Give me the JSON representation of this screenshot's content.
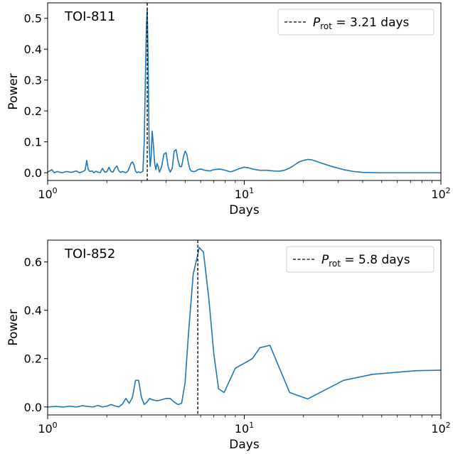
{
  "chart_data": [
    {
      "type": "line",
      "panel_label": "TOI-811",
      "xlabel": "Days",
      "ylabel": "Power",
      "xscale": "log",
      "xlim": [
        1,
        100
      ],
      "ylim": [
        -0.025,
        0.55
      ],
      "xticks": [
        {
          "value": 1,
          "base": "10",
          "exp": "0"
        },
        {
          "value": 10,
          "base": "10",
          "exp": "1"
        },
        {
          "value": 100,
          "base": "10",
          "exp": "2"
        }
      ],
      "yticks": [
        {
          "value": 0.0,
          "label": "0.0"
        },
        {
          "value": 0.1,
          "label": "0.1"
        },
        {
          "value": 0.2,
          "label": "0.2"
        },
        {
          "value": 0.3,
          "label": "0.3"
        },
        {
          "value": 0.4,
          "label": "0.4"
        },
        {
          "value": 0.5,
          "label": "0.5"
        }
      ],
      "legend": {
        "position": "top-right",
        "symbol": "P",
        "subscript": "rot",
        "text": " = 3.21 days"
      },
      "vline": {
        "x": 3.21,
        "style": "dashed",
        "color": "#000000"
      },
      "series": [
        {
          "color": "#1f77b4",
          "x": [
            1.0,
            1.05,
            1.08,
            1.12,
            1.18,
            1.25,
            1.32,
            1.4,
            1.45,
            1.5,
            1.55,
            1.58,
            1.61,
            1.64,
            1.68,
            1.72,
            1.76,
            1.8,
            1.85,
            1.9,
            1.95,
            2.0,
            2.05,
            2.1,
            2.15,
            2.2,
            2.25,
            2.3,
            2.35,
            2.4,
            2.45,
            2.5,
            2.55,
            2.6,
            2.65,
            2.7,
            2.75,
            2.8,
            2.85,
            2.9,
            2.95,
            3.0,
            3.05,
            3.1,
            3.15,
            3.18,
            3.21,
            3.24,
            3.28,
            3.32,
            3.36,
            3.4,
            3.45,
            3.5,
            3.55,
            3.6,
            3.65,
            3.7,
            3.8,
            3.9,
            4.0,
            4.1,
            4.2,
            4.3,
            4.4,
            4.5,
            4.6,
            4.7,
            4.8,
            4.9,
            5.0,
            5.1,
            5.2,
            5.3,
            5.4,
            5.5,
            5.6,
            5.7,
            5.8,
            6.0,
            6.3,
            6.7,
            7.0,
            7.5,
            8.0,
            8.5,
            9.0,
            9.5,
            10.0,
            10.5,
            11.0,
            12.0,
            13.0,
            14.0,
            15.0,
            16.0,
            17.0,
            18.0,
            19.0,
            20.0,
            21.0,
            22.0,
            23.0,
            25.0,
            28.0,
            32.0,
            36.0,
            40.0,
            50.0,
            60.0,
            80.0,
            100.0
          ],
          "y": [
            0.002,
            0.01,
            0.0,
            0.004,
            0.0,
            0.004,
            0.001,
            0.006,
            0.0,
            0.003,
            0.008,
            0.04,
            0.01,
            0.004,
            0.006,
            0.0,
            0.005,
            0.002,
            0.0,
            0.014,
            0.002,
            0.003,
            0.018,
            0.004,
            0.002,
            0.015,
            0.022,
            0.006,
            0.001,
            0.004,
            0.002,
            0.0,
            0.004,
            0.015,
            0.03,
            0.035,
            0.025,
            0.005,
            0.0,
            0.003,
            0.0,
            0.002,
            0.005,
            0.1,
            0.35,
            0.48,
            0.53,
            0.38,
            0.1,
            0.02,
            0.05,
            0.135,
            0.09,
            0.03,
            0.01,
            0.03,
            0.02,
            0.002,
            0.02,
            0.06,
            0.065,
            0.02,
            0.002,
            0.015,
            0.07,
            0.075,
            0.04,
            0.02,
            0.02,
            0.05,
            0.07,
            0.06,
            0.03,
            0.01,
            0.005,
            0.004,
            0.004,
            0.006,
            0.01,
            0.012,
            0.008,
            0.006,
            0.01,
            0.012,
            0.008,
            0.003,
            0.008,
            0.014,
            0.018,
            0.016,
            0.012,
            0.008,
            0.008,
            0.006,
            0.005,
            0.008,
            0.015,
            0.025,
            0.035,
            0.04,
            0.043,
            0.042,
            0.038,
            0.03,
            0.02,
            0.01,
            0.004,
            0.001,
            0.0,
            0.0,
            0.0,
            0.0
          ]
        }
      ]
    },
    {
      "type": "line",
      "panel_label": "TOI-852",
      "xlabel": "Days",
      "ylabel": "Power",
      "xscale": "log",
      "xlim": [
        1,
        100
      ],
      "ylim": [
        -0.033,
        0.69
      ],
      "xticks": [
        {
          "value": 1,
          "base": "10",
          "exp": "0"
        },
        {
          "value": 10,
          "base": "10",
          "exp": "1"
        },
        {
          "value": 100,
          "base": "10",
          "exp": "2"
        }
      ],
      "yticks": [
        {
          "value": 0.0,
          "label": "0.0"
        },
        {
          "value": 0.2,
          "label": "0.2"
        },
        {
          "value": 0.4,
          "label": "0.4"
        },
        {
          "value": 0.6,
          "label": "0.6"
        }
      ],
      "legend": {
        "position": "top-right",
        "symbol": "P",
        "subscript": "rot",
        "text": " = 5.8 days"
      },
      "vline": {
        "x": 5.8,
        "style": "dashed",
        "color": "#000000"
      },
      "series": [
        {
          "color": "#1f77b4",
          "x": [
            1.0,
            1.1,
            1.2,
            1.3,
            1.4,
            1.5,
            1.6,
            1.7,
            1.8,
            1.9,
            2.0,
            2.1,
            2.2,
            2.3,
            2.4,
            2.5,
            2.6,
            2.7,
            2.8,
            2.9,
            3.0,
            3.1,
            3.2,
            3.3,
            3.4,
            3.6,
            3.8,
            4.0,
            4.2,
            4.4,
            4.6,
            4.8,
            5.0,
            5.2,
            5.5,
            5.8,
            5.9,
            6.2,
            6.6,
            7.0,
            7.4,
            7.9,
            9.0,
            11.0,
            12.0,
            13.5,
            17.0,
            21.0,
            25.0,
            32.0,
            45.0,
            75.0,
            100.0
          ],
          "y": [
            0.0,
            0.002,
            0.0,
            0.003,
            0.0,
            0.005,
            0.002,
            0.0,
            0.006,
            0.0,
            0.003,
            0.01,
            0.004,
            0.0,
            0.012,
            0.035,
            0.015,
            0.04,
            0.11,
            0.11,
            0.04,
            0.01,
            0.02,
            0.035,
            0.03,
            0.025,
            0.03,
            0.035,
            0.035,
            0.02,
            0.01,
            0.015,
            0.1,
            0.3,
            0.55,
            0.63,
            0.66,
            0.64,
            0.45,
            0.22,
            0.075,
            0.06,
            0.16,
            0.2,
            0.245,
            0.255,
            0.06,
            0.033,
            0.065,
            0.11,
            0.135,
            0.15,
            0.152
          ]
        }
      ]
    }
  ]
}
